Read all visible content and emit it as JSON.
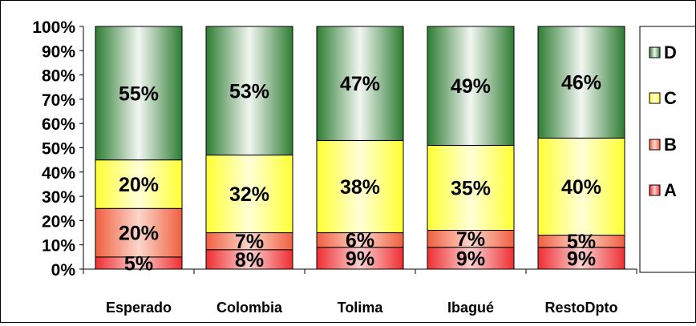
{
  "chart_data": {
    "type": "bar",
    "stacked": true,
    "percent": true,
    "categories": [
      "Esperado",
      "Colombia",
      "Tolima",
      "Ibagué",
      "RestoDpto"
    ],
    "series": [
      {
        "name": "A",
        "values": [
          5,
          8,
          9,
          9,
          9
        ],
        "labels": [
          "5%",
          "8%",
          "9%",
          "9%",
          "9%"
        ],
        "color": "#ee2f32",
        "gradient_light": "#fbd0d0"
      },
      {
        "name": "B",
        "values": [
          20,
          7,
          6,
          7,
          5
        ],
        "labels": [
          "20%",
          "7%",
          "6%",
          "7%",
          "5%"
        ],
        "color": "#f06040",
        "gradient_light": "#fbd6cb"
      },
      {
        "name": "C",
        "values": [
          20,
          32,
          38,
          35,
          40
        ],
        "labels": [
          "20%",
          "32%",
          "38%",
          "35%",
          "40%"
        ],
        "color": "#ffff33",
        "gradient_light": "#ffffd8"
      },
      {
        "name": "D",
        "values": [
          55,
          53,
          47,
          49,
          46
        ],
        "labels": [
          "55%",
          "53%",
          "47%",
          "49%",
          "46%"
        ],
        "color": "#2e7d32",
        "gradient_light": "#f2f6f2"
      }
    ],
    "y_ticks": [
      "0%",
      "10%",
      "20%",
      "30%",
      "40%",
      "50%",
      "60%",
      "70%",
      "80%",
      "90%",
      "100%"
    ],
    "ylim": [
      0,
      100
    ],
    "grid": false,
    "legend_position": "right",
    "legend_order": [
      "D",
      "C",
      "B",
      "A"
    ]
  }
}
